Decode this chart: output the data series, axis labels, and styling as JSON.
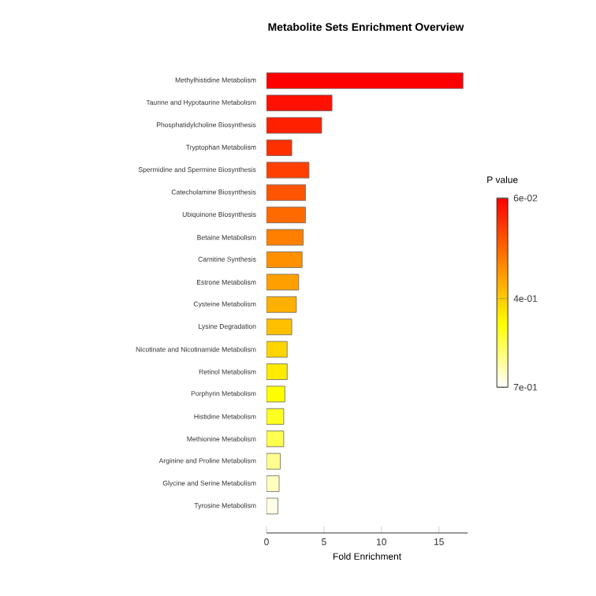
{
  "chart_data": {
    "type": "bar",
    "orientation": "horizontal",
    "title": "Metabolite Sets Enrichment Overview",
    "xlabel": "Fold Enrichment",
    "clabel": "P value",
    "categories": [
      "Methylhistidine Metabolism",
      "Taurine and Hypotaurine Metabolism",
      "Phosphatidylcholine Biosynthesis",
      "Tryptophan Metabolism",
      "Spermidine and Spermine Biosynthesis",
      "Catecholamine Biosynthesis",
      "Ubiquinone Biosynthesis",
      "Betaine Metabolism",
      "Carnitine Synthesis",
      "Estrone Metabolism",
      "Cysteine Metabolism",
      "Lysine Degradation",
      "Nicotinate and Nicotinamide Metabolism",
      "Retinol Metabolism",
      "Porphyrin Metabolism",
      "Histidine Metabolism",
      "Methionine Metabolism",
      "Arginine and Proline Metabolism",
      "Glycine and Serine Metabolism",
      "Tyrosine Metabolism"
    ],
    "values": [
      17.1,
      5.7,
      4.8,
      2.2,
      3.7,
      3.4,
      3.4,
      3.2,
      3.1,
      2.8,
      2.6,
      2.2,
      1.8,
      1.8,
      1.6,
      1.5,
      1.5,
      1.2,
      1.1,
      1.0
    ],
    "colors": [
      "#ff0000",
      "#ff1000",
      "#ff2000",
      "#ff3000",
      "#ff4000",
      "#ff5500",
      "#ff6a00",
      "#ff8000",
      "#ff9000",
      "#ffa000",
      "#ffb000",
      "#ffc000",
      "#ffd500",
      "#ffea00",
      "#ffff00",
      "#ffff20",
      "#ffff50",
      "#ffff90",
      "#ffffc0",
      "#ffffe8"
    ],
    "xlim": [
      0,
      17.5
    ],
    "xticks": [
      0,
      5,
      10,
      15
    ],
    "clim": [
      0.06,
      0.7
    ],
    "cticks": [
      {
        "value": 0.06,
        "label": "6e-02"
      },
      {
        "value": 0.4,
        "label": "4e-01"
      },
      {
        "value": 0.7,
        "label": "7e-01"
      }
    ]
  }
}
